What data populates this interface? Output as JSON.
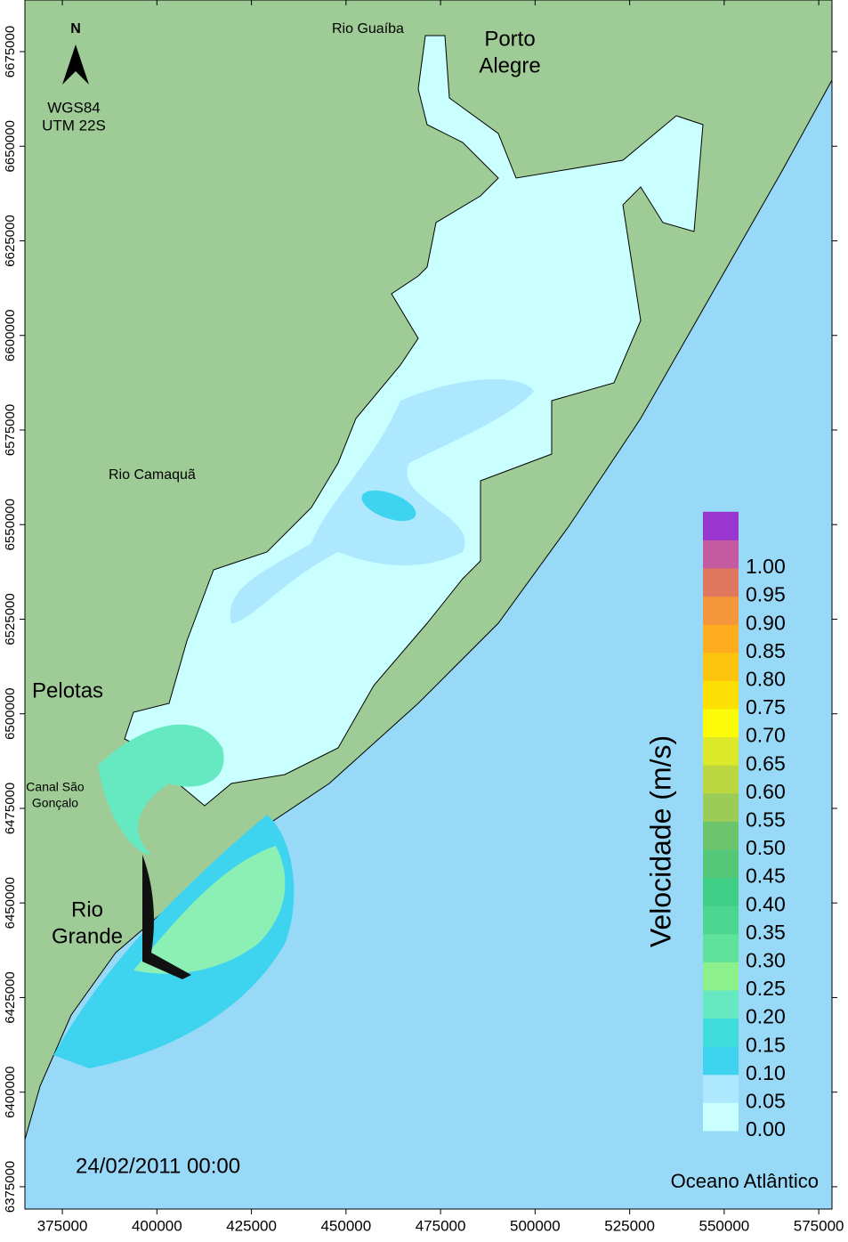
{
  "map": {
    "xticks": [
      375000,
      400000,
      425000,
      450000,
      475000,
      500000,
      525000,
      550000,
      575000
    ],
    "yticks": [
      6375000,
      6400000,
      6425000,
      6450000,
      6475000,
      6500000,
      6525000,
      6550000,
      6575000,
      6600000,
      6625000,
      6650000,
      6675000
    ],
    "xlim": [
      365100,
      578500
    ],
    "ylim": [
      6369100,
      6688650
    ],
    "north": "N",
    "datum": [
      "WGS84",
      "UTM 22S"
    ],
    "places": {
      "rio_guaiba": "Rio Guaíba",
      "porto_alegre": [
        "Porto",
        "Alegre"
      ],
      "rio_camaqua": "Rio Camaquã",
      "pelotas": "Pelotas",
      "canal": [
        "Canal São",
        "Gonçalo"
      ],
      "rio_grande": [
        "Rio",
        "Grande"
      ],
      "ocean": "Oceano Atlântico"
    },
    "timestamp": "24/02/2011 00:00",
    "legend": {
      "title": "Velocidade (m/s)",
      "labels": [
        "0.00",
        "0.05",
        "0.10",
        "0.15",
        "0.20",
        "0.25",
        "0.30",
        "0.35",
        "0.40",
        "0.45",
        "0.50",
        "0.55",
        "0.60",
        "0.65",
        "0.70",
        "0.75",
        "0.80",
        "0.85",
        "0.90",
        "0.95",
        "1.00"
      ],
      "colors": [
        "#c9ffff",
        "#ade8fe",
        "#3ed4f0",
        "#3fdcdc",
        "#66e8c0",
        "#8cf08c",
        "#5fe29a",
        "#4cd690",
        "#3fcf86",
        "#54c878",
        "#6cc46c",
        "#9ccc58",
        "#bcd640",
        "#dce82a",
        "#fcfc0a",
        "#fce004",
        "#fcc40c",
        "#fcac1c",
        "#f4963c",
        "#e07860",
        "#c45aa0",
        "#9a36d0"
      ]
    }
  }
}
